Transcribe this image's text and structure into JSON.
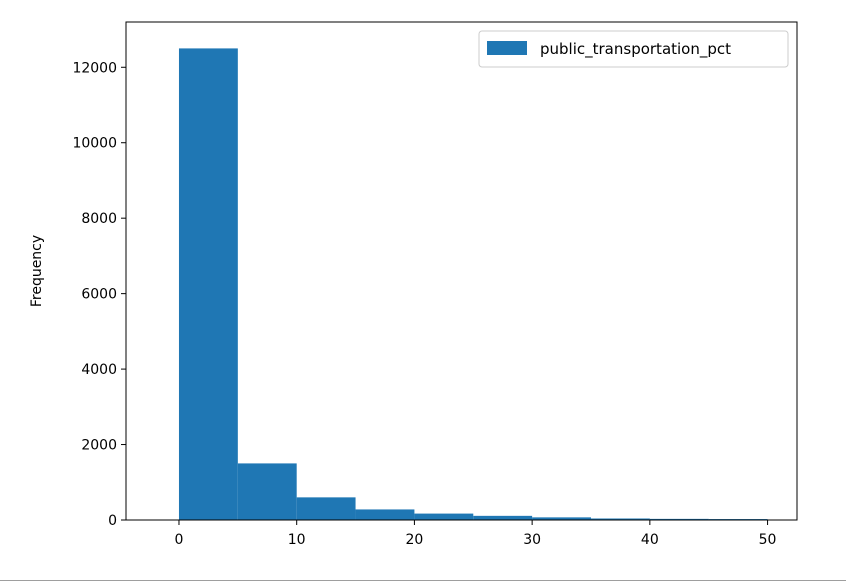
{
  "chart_data": {
    "type": "bar",
    "title": "",
    "xlabel": "",
    "ylabel": "Frequency",
    "xlim": [
      -4.5,
      52.5
    ],
    "ylim": [
      0,
      13200
    ],
    "xticks": [
      0,
      10,
      20,
      30,
      40,
      50
    ],
    "yticks": [
      0,
      2000,
      4000,
      6000,
      8000,
      10000,
      12000
    ],
    "bin_edges": [
      0,
      5,
      10,
      15,
      20,
      25,
      30,
      35,
      40,
      45,
      50
    ],
    "series": [
      {
        "name": "public_transportation_pct",
        "values": [
          12500,
          1500,
          600,
          280,
          170,
          110,
          70,
          40,
          30,
          25
        ],
        "color": "#1f77b4"
      }
    ],
    "legend": "top-right",
    "grid": false
  }
}
